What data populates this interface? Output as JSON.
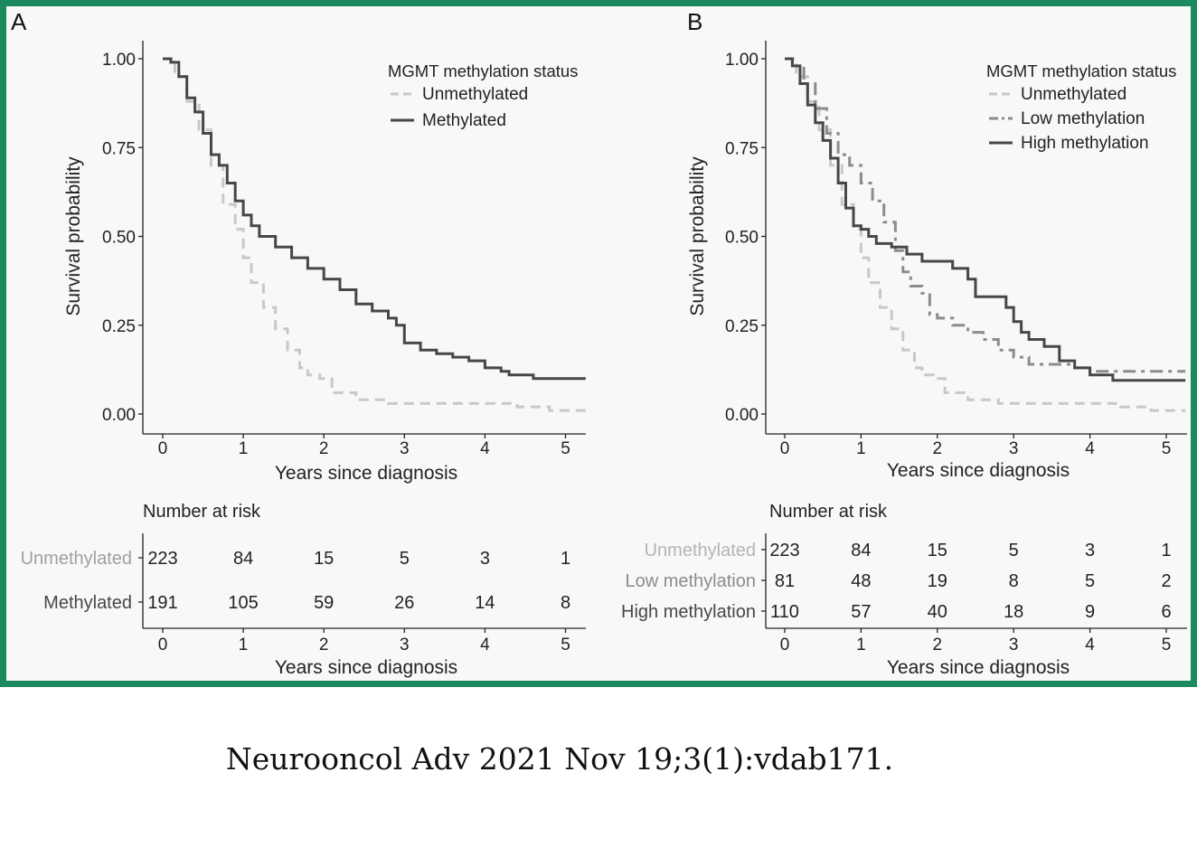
{
  "citation": "Neurooncol Adv 2021 Nov 19;3(1):vdab171.",
  "colors": {
    "frame": "#1b8a5f",
    "unmethylated": "#c8c8c8",
    "low": "#8c8c8c",
    "high": "#474747",
    "methylated": "#474747",
    "axis": "#222222"
  },
  "chart_data": [
    {
      "type": "line",
      "panel_label": "A",
      "xlabel": "Years since diagnosis",
      "ylabel": "Survival probability",
      "xlim": [
        0,
        5.25
      ],
      "ylim": [
        0,
        1.0
      ],
      "xticks": [
        "0",
        "1",
        "2",
        "3",
        "4",
        "5"
      ],
      "yticks": [
        "0.00",
        "0.25",
        "0.50",
        "0.75",
        "1.00"
      ],
      "legend_title": "MGMT methylation status",
      "legend_position": "top-right",
      "series": [
        {
          "name": "Unmethylated",
          "style": "dashed",
          "color": "#c8c8c8",
          "x": [
            0,
            0.15,
            0.3,
            0.45,
            0.6,
            0.75,
            0.9,
            1.0,
            1.1,
            1.25,
            1.4,
            1.55,
            1.7,
            1.8,
            1.95,
            2.1,
            2.4,
            2.8,
            3.2,
            3.6,
            4.0,
            4.4,
            4.8,
            5.25
          ],
          "y": [
            1.0,
            0.95,
            0.88,
            0.8,
            0.7,
            0.59,
            0.52,
            0.44,
            0.37,
            0.3,
            0.24,
            0.18,
            0.13,
            0.11,
            0.1,
            0.06,
            0.04,
            0.03,
            0.03,
            0.03,
            0.03,
            0.02,
            0.01,
            0.01
          ]
        },
        {
          "name": "Methylated",
          "style": "solid",
          "color": "#474747",
          "x": [
            0,
            0.1,
            0.2,
            0.3,
            0.4,
            0.5,
            0.6,
            0.7,
            0.8,
            0.9,
            1.0,
            1.1,
            1.2,
            1.4,
            1.6,
            1.8,
            2.0,
            2.2,
            2.4,
            2.6,
            2.8,
            2.9,
            3.0,
            3.2,
            3.4,
            3.6,
            3.8,
            4.0,
            4.2,
            4.3,
            4.6,
            5.0,
            5.25
          ],
          "y": [
            1.0,
            0.99,
            0.95,
            0.89,
            0.85,
            0.79,
            0.73,
            0.7,
            0.65,
            0.6,
            0.56,
            0.53,
            0.5,
            0.47,
            0.44,
            0.41,
            0.38,
            0.35,
            0.31,
            0.29,
            0.27,
            0.25,
            0.2,
            0.18,
            0.17,
            0.16,
            0.15,
            0.13,
            0.12,
            0.11,
            0.1,
            0.1,
            0.1
          ]
        }
      ],
      "risk_table": {
        "title": "Number at risk",
        "xlabel": "Years since diagnosis",
        "rows": [
          {
            "name": "Unmethylated",
            "color": "#a0a0a0",
            "values": [
              "223",
              "84",
              "15",
              "5",
              "3",
              "1"
            ]
          },
          {
            "name": "Methylated",
            "color": "#474747",
            "values": [
              "191",
              "105",
              "59",
              "26",
              "14",
              "8"
            ]
          }
        ]
      }
    },
    {
      "type": "line",
      "panel_label": "B",
      "xlabel": "Years since diagnosis",
      "ylabel": "Survival probability",
      "xlim": [
        0,
        5.25
      ],
      "ylim": [
        0,
        1.0
      ],
      "xticks": [
        "0",
        "1",
        "2",
        "3",
        "4",
        "5"
      ],
      "yticks": [
        "0.00",
        "0.25",
        "0.50",
        "0.75",
        "1.00"
      ],
      "legend_title": "MGMT methylation status",
      "legend_position": "top-right",
      "series": [
        {
          "name": "Unmethylated",
          "style": "dashed",
          "color": "#c8c8c8",
          "x": [
            0,
            0.15,
            0.3,
            0.45,
            0.6,
            0.75,
            0.9,
            1.0,
            1.1,
            1.25,
            1.4,
            1.55,
            1.7,
            1.8,
            1.95,
            2.1,
            2.4,
            2.8,
            3.2,
            3.6,
            4.0,
            4.4,
            4.8,
            5.25
          ],
          "y": [
            1.0,
            0.95,
            0.88,
            0.8,
            0.7,
            0.59,
            0.52,
            0.44,
            0.37,
            0.3,
            0.24,
            0.18,
            0.13,
            0.11,
            0.1,
            0.06,
            0.04,
            0.03,
            0.03,
            0.03,
            0.03,
            0.02,
            0.01,
            0.01
          ]
        },
        {
          "name": "Low methylation",
          "style": "dashdot",
          "color": "#8c8c8c",
          "x": [
            0,
            0.1,
            0.25,
            0.4,
            0.55,
            0.7,
            0.85,
            1.0,
            1.15,
            1.3,
            1.45,
            1.55,
            1.65,
            1.8,
            1.9,
            2.0,
            2.2,
            2.4,
            2.6,
            2.8,
            3.0,
            3.2,
            3.5,
            3.8,
            4.0,
            4.5,
            5.25
          ],
          "y": [
            1.0,
            0.98,
            0.93,
            0.86,
            0.79,
            0.73,
            0.7,
            0.65,
            0.6,
            0.54,
            0.46,
            0.4,
            0.36,
            0.34,
            0.28,
            0.27,
            0.25,
            0.23,
            0.21,
            0.18,
            0.16,
            0.14,
            0.14,
            0.13,
            0.12,
            0.12,
            0.12
          ]
        },
        {
          "name": "High methylation",
          "style": "solid",
          "color": "#474747",
          "x": [
            0,
            0.1,
            0.2,
            0.3,
            0.4,
            0.5,
            0.6,
            0.7,
            0.8,
            0.9,
            1.0,
            1.1,
            1.2,
            1.4,
            1.6,
            1.8,
            2.0,
            2.2,
            2.4,
            2.5,
            2.7,
            2.9,
            3.0,
            3.1,
            3.2,
            3.4,
            3.6,
            3.8,
            4.0,
            4.3,
            5.25
          ],
          "y": [
            1.0,
            0.98,
            0.93,
            0.87,
            0.82,
            0.77,
            0.72,
            0.65,
            0.58,
            0.53,
            0.52,
            0.5,
            0.48,
            0.47,
            0.45,
            0.43,
            0.43,
            0.41,
            0.38,
            0.33,
            0.33,
            0.3,
            0.26,
            0.23,
            0.21,
            0.19,
            0.15,
            0.13,
            0.11,
            0.095,
            0.095
          ]
        }
      ],
      "risk_table": {
        "title": "Number at risk",
        "xlabel": "Years since diagnosis",
        "rows": [
          {
            "name": "Unmethylated",
            "color": "#b4b4b4",
            "values": [
              "223",
              "84",
              "15",
              "5",
              "3",
              "1"
            ]
          },
          {
            "name": "Low methylation",
            "color": "#8c8c8c",
            "values": [
              "81",
              "48",
              "19",
              "8",
              "5",
              "2"
            ]
          },
          {
            "name": "High methylation",
            "color": "#474747",
            "values": [
              "110",
              "57",
              "40",
              "18",
              "9",
              "6"
            ]
          }
        ]
      }
    }
  ]
}
